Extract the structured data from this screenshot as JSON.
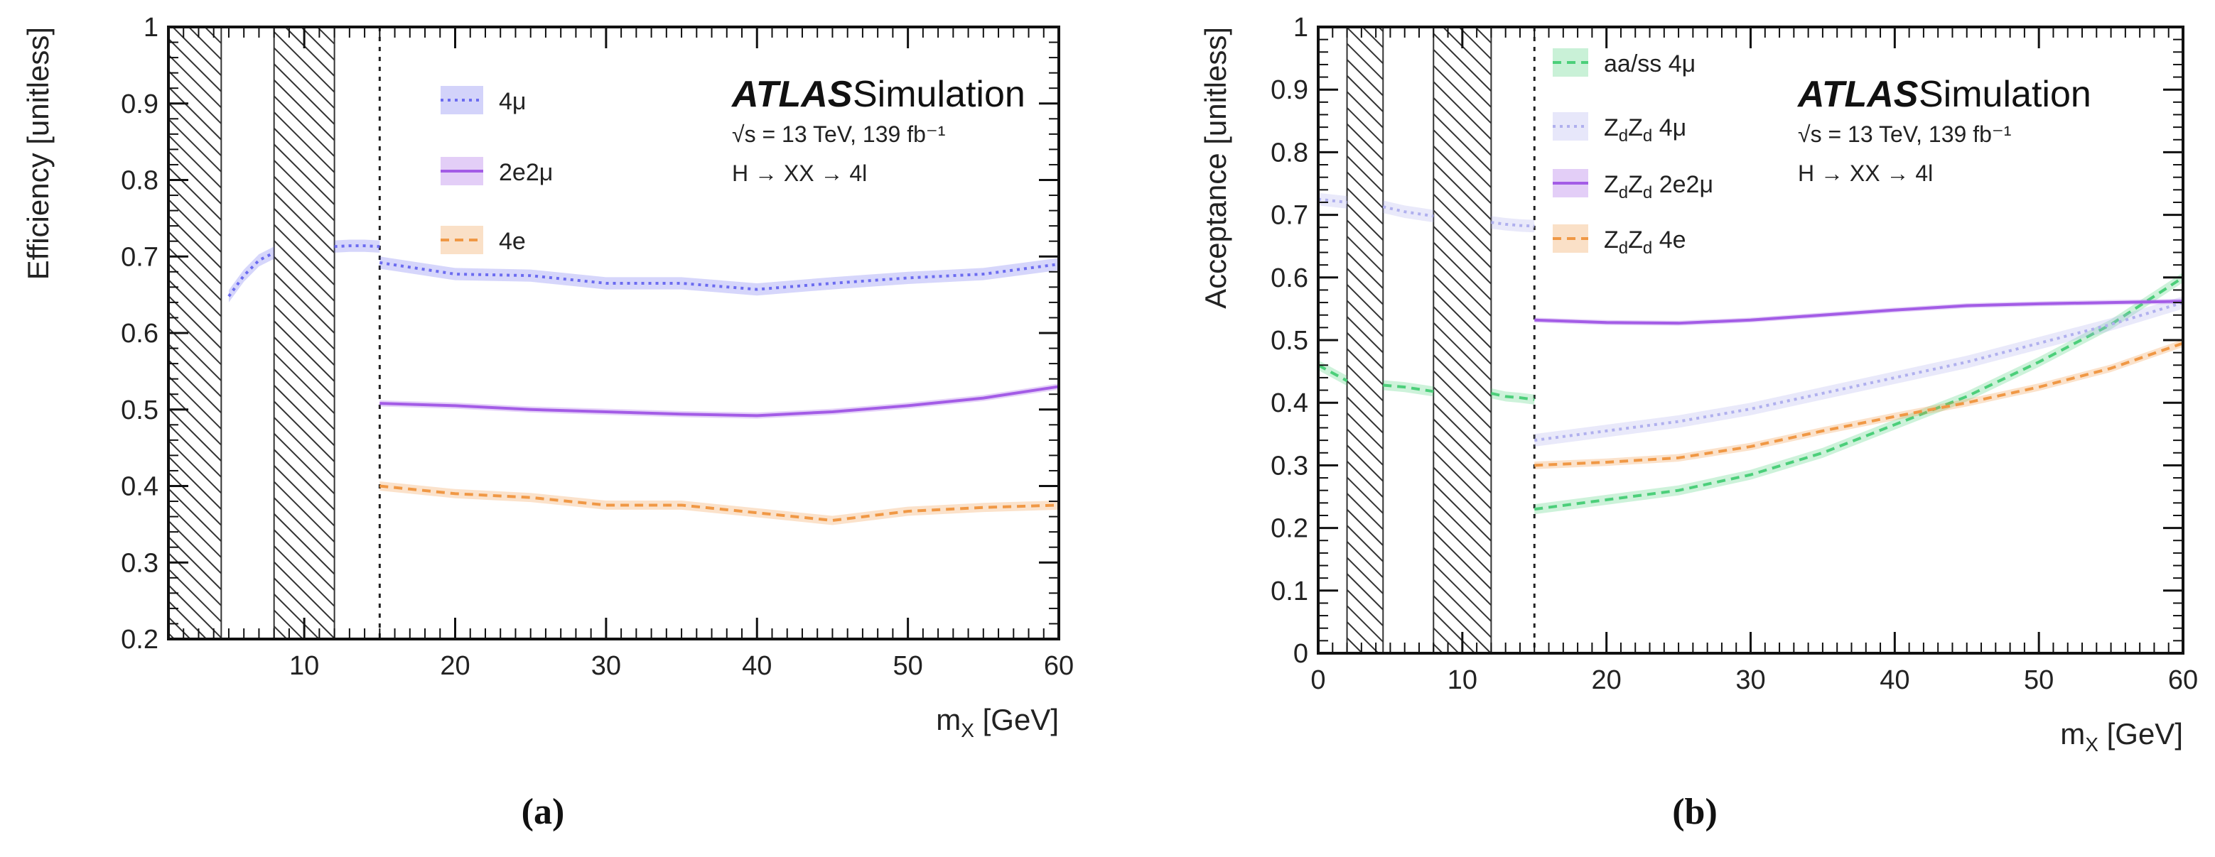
{
  "chart_data": [
    {
      "type": "line",
      "panel_label": "(a)",
      "xlabel": "m",
      "xlabel_sub": "X",
      "xlabel_unit": "[GeV]",
      "ylabel": "Efficiency [unitless]",
      "xlim": [
        1,
        60
      ],
      "ylim": [
        0.2,
        1.0
      ],
      "xticks": [
        10,
        20,
        30,
        40,
        50,
        60
      ],
      "yticks": [
        0.2,
        0.3,
        0.4,
        0.5,
        0.6,
        0.7,
        0.8,
        0.9,
        1.0
      ],
      "ytick_labels": [
        "0.2",
        "0.3",
        "0.4",
        "0.5",
        "0.6",
        "0.7",
        "0.8",
        "0.9",
        "1"
      ],
      "hatched_regions": [
        [
          1,
          4.5
        ],
        [
          8,
          12
        ]
      ],
      "divider_x": 15,
      "atlas_label": {
        "bold": "ATLAS",
        "text": "Simulation"
      },
      "info_lines": [
        "√s = 13 TeV, 139 fb⁻¹",
        "H → XX → 4l"
      ],
      "series": [
        {
          "name": "4μ",
          "color": "#6c6cf0",
          "band": 0.008,
          "dash": "dot",
          "segments": [
            {
              "x": [
                5,
                6,
                7,
                8
              ],
              "values": [
                0.648,
                0.675,
                0.695,
                0.705
              ]
            },
            {
              "x": [
                12,
                13,
                14,
                15
              ],
              "values": [
                0.713,
                0.714,
                0.714,
                0.713
              ]
            },
            {
              "x": [
                15,
                20,
                25,
                30,
                35,
                40,
                45,
                50,
                55,
                60
              ],
              "values": [
                0.692,
                0.677,
                0.675,
                0.665,
                0.665,
                0.657,
                0.665,
                0.672,
                0.677,
                0.69
              ]
            }
          ]
        },
        {
          "name": "2e2μ",
          "color": "#a35ce6",
          "band": 0.004,
          "dash": "solid",
          "segments": [
            {
              "x": [
                15,
                20,
                25,
                30,
                35,
                40,
                45,
                50,
                55,
                60
              ],
              "values": [
                0.508,
                0.505,
                0.5,
                0.497,
                0.494,
                0.492,
                0.497,
                0.505,
                0.515,
                0.53
              ]
            }
          ]
        },
        {
          "name": "4e",
          "color": "#f09845",
          "band": 0.006,
          "dash": "dash",
          "segments": [
            {
              "x": [
                15,
                20,
                25,
                30,
                35,
                40,
                45,
                50,
                55,
                60
              ],
              "values": [
                0.4,
                0.39,
                0.385,
                0.375,
                0.375,
                0.365,
                0.355,
                0.367,
                0.372,
                0.375
              ]
            }
          ]
        }
      ]
    },
    {
      "type": "line",
      "panel_label": "(b)",
      "xlabel": "m",
      "xlabel_sub": "X",
      "xlabel_unit": "[GeV]",
      "ylabel": "Acceptance [unitless]",
      "xlim": [
        0,
        60
      ],
      "ylim": [
        0,
        1.0
      ],
      "xticks": [
        0,
        10,
        20,
        30,
        40,
        50,
        60
      ],
      "yticks": [
        0,
        0.1,
        0.2,
        0.3,
        0.4,
        0.5,
        0.6,
        0.7,
        0.8,
        0.9,
        1.0
      ],
      "ytick_labels": [
        "0",
        "0.1",
        "0.2",
        "0.3",
        "0.4",
        "0.5",
        "0.6",
        "0.7",
        "0.8",
        "0.9",
        "1"
      ],
      "hatched_regions": [
        [
          2,
          4.5
        ],
        [
          8,
          12
        ]
      ],
      "divider_x": 15,
      "atlas_label": {
        "bold": "ATLAS",
        "text": "Simulation"
      },
      "info_lines": [
        "√s = 13 TeV, 139 fb⁻¹",
        "H → XX → 4l"
      ],
      "series": [
        {
          "name": "aa/ss 4μ",
          "color": "#4ccf7a",
          "band": 0.008,
          "dash": "dash",
          "segments": [
            {
              "x": [
                0,
                2
              ],
              "values": [
                0.46,
                0.435
              ]
            },
            {
              "x": [
                4.5,
                6,
                8
              ],
              "values": [
                0.428,
                0.425,
                0.418
              ]
            },
            {
              "x": [
                12,
                13,
                14,
                15
              ],
              "values": [
                0.415,
                0.41,
                0.408,
                0.405
              ]
            },
            {
              "x": [
                15,
                20,
                25,
                30,
                35,
                40,
                45,
                50,
                55,
                60
              ],
              "values": [
                0.23,
                0.245,
                0.26,
                0.285,
                0.32,
                0.365,
                0.41,
                0.465,
                0.525,
                0.6
              ]
            }
          ]
        },
        {
          "name": "ZdZd 4μ",
          "label_main": "Z",
          "label_sub": "d",
          "label_tail": " 4μ",
          "color": "#b0b0ee",
          "band": 0.01,
          "dash": "dot",
          "segments": [
            {
              "x": [
                0,
                2
              ],
              "values": [
                0.725,
                0.72
              ]
            },
            {
              "x": [
                4.5,
                6,
                8
              ],
              "values": [
                0.713,
                0.705,
                0.698
              ]
            },
            {
              "x": [
                12,
                13,
                14,
                15
              ],
              "values": [
                0.688,
                0.685,
                0.683,
                0.682
              ]
            },
            {
              "x": [
                15,
                20,
                25,
                30,
                35,
                40,
                45,
                50,
                55,
                60
              ],
              "values": [
                0.34,
                0.355,
                0.37,
                0.39,
                0.415,
                0.44,
                0.465,
                0.495,
                0.525,
                0.56
              ]
            }
          ]
        },
        {
          "name": "ZdZd 2e2μ",
          "label_main": "Z",
          "label_sub": "d",
          "label_tail": " 2e2μ",
          "color": "#a35ce6",
          "band": 0.004,
          "dash": "solid",
          "segments": [
            {
              "x": [
                15,
                20,
                25,
                30,
                35,
                40,
                45,
                50,
                55,
                60
              ],
              "values": [
                0.532,
                0.528,
                0.527,
                0.532,
                0.54,
                0.548,
                0.555,
                0.558,
                0.56,
                0.562
              ]
            }
          ]
        },
        {
          "name": "ZdZd 4e",
          "label_main": "Z",
          "label_sub": "d",
          "label_tail": " 4e",
          "color": "#f09845",
          "band": 0.006,
          "dash": "dash",
          "segments": [
            {
              "x": [
                15,
                20,
                25,
                30,
                35,
                40,
                45,
                50,
                55,
                60
              ],
              "values": [
                0.3,
                0.305,
                0.312,
                0.33,
                0.355,
                0.378,
                0.4,
                0.425,
                0.455,
                0.495
              ]
            }
          ]
        }
      ]
    }
  ]
}
